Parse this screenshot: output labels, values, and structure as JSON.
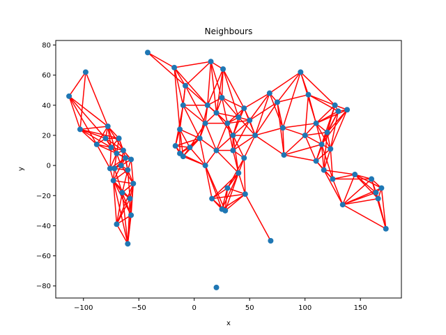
{
  "chart_data": {
    "type": "scatter",
    "title": "Neighbours",
    "xlabel": "x",
    "ylabel": "y",
    "xlim": [
      -125,
      187
    ],
    "ylim": [
      -88,
      83
    ],
    "xticks": [
      -100,
      -50,
      0,
      50,
      100,
      150
    ],
    "yticks": [
      -80,
      -60,
      -40,
      -20,
      0,
      20,
      40,
      60,
      80
    ],
    "grid": false,
    "colors": {
      "points": "#1f77b4",
      "edges": "#ff0000"
    },
    "points": [
      [
        -113,
        46
      ],
      [
        -98,
        62
      ],
      [
        -103,
        24
      ],
      [
        -88,
        14
      ],
      [
        -78,
        26
      ],
      [
        -80,
        18
      ],
      [
        -75,
        12
      ],
      [
        -70,
        8
      ],
      [
        -68,
        18
      ],
      [
        -64,
        10
      ],
      [
        -62,
        5
      ],
      [
        -66,
        0
      ],
      [
        -72,
        -2
      ],
      [
        -60,
        -3
      ],
      [
        -57,
        4
      ],
      [
        -55,
        -12
      ],
      [
        -58,
        -22
      ],
      [
        -57,
        -33
      ],
      [
        -60,
        -52
      ],
      [
        -65,
        -18
      ],
      [
        -70,
        -39
      ],
      [
        -76,
        -2
      ],
      [
        -73,
        -10
      ],
      [
        -42,
        75
      ],
      [
        -18,
        65
      ],
      [
        15,
        69
      ],
      [
        26,
        64
      ],
      [
        -8,
        53
      ],
      [
        -10,
        40
      ],
      [
        -13,
        24
      ],
      [
        -17,
        13
      ],
      [
        -13,
        8
      ],
      [
        -10,
        6
      ],
      [
        -4,
        12
      ],
      [
        5,
        18
      ],
      [
        10,
        28
      ],
      [
        12,
        40
      ],
      [
        20,
        35
      ],
      [
        25,
        45
      ],
      [
        30,
        28
      ],
      [
        35,
        20
      ],
      [
        40,
        32
      ],
      [
        45,
        38
      ],
      [
        50,
        30
      ],
      [
        55,
        20
      ],
      [
        45,
        5
      ],
      [
        40,
        -5
      ],
      [
        30,
        -15
      ],
      [
        25,
        -29
      ],
      [
        28,
        -30
      ],
      [
        46,
        -19
      ],
      [
        16,
        -22
      ],
      [
        10,
        0
      ],
      [
        20,
        10
      ],
      [
        35,
        10
      ],
      [
        68,
        48
      ],
      [
        75,
        42
      ],
      [
        80,
        25
      ],
      [
        81,
        7
      ],
      [
        96,
        62
      ],
      [
        103,
        47
      ],
      [
        100,
        20
      ],
      [
        110,
        28
      ],
      [
        115,
        14
      ],
      [
        120,
        22
      ],
      [
        110,
        3
      ],
      [
        117,
        -3
      ],
      [
        123,
        11
      ],
      [
        125,
        -9
      ],
      [
        127,
        40
      ],
      [
        130,
        36
      ],
      [
        138,
        37
      ],
      [
        134,
        -26
      ],
      [
        145,
        -6
      ],
      [
        160,
        -9
      ],
      [
        164,
        -18
      ],
      [
        166,
        -22
      ],
      [
        169,
        -15
      ],
      [
        173,
        -42
      ],
      [
        69,
        -50
      ],
      [
        20,
        -81
      ]
    ]
  }
}
